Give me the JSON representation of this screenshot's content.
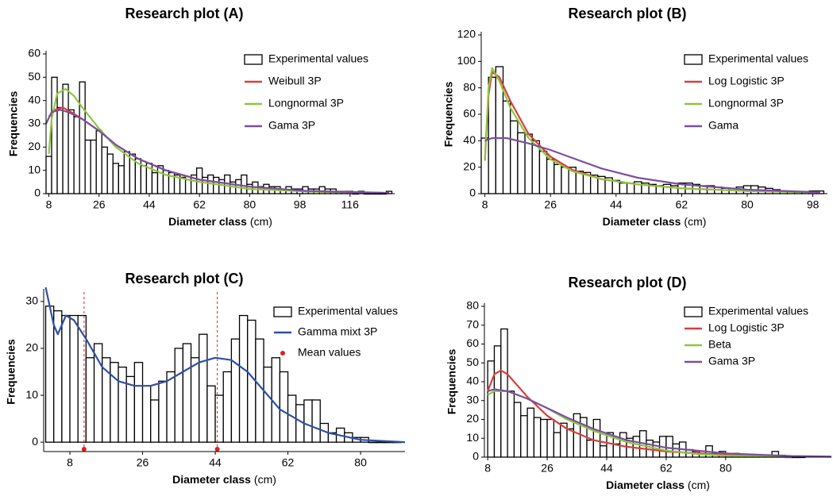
{
  "chart_data": [
    {
      "type": "histogram",
      "title": "Research plot (A)",
      "xlabel": "Diameter class",
      "xlabel_unit": "(cm)",
      "ylabel": "Frequencies",
      "bar_name": "Experimental values",
      "bar_color": "#000000",
      "bins": [
        7,
        9,
        11,
        13,
        15,
        17,
        19,
        21,
        23,
        25,
        27,
        29,
        31,
        33,
        35,
        37,
        39,
        41,
        43,
        45,
        47,
        49,
        51,
        53,
        55,
        57,
        59,
        61,
        63,
        65,
        67,
        69,
        71,
        73,
        75,
        77,
        79,
        81,
        83,
        85,
        87,
        89,
        91,
        93,
        95,
        97,
        99,
        101,
        103,
        105,
        107,
        109,
        111,
        113,
        115,
        117,
        119,
        121,
        123,
        125,
        127,
        129,
        131
      ],
      "counts": [
        16,
        50,
        37,
        47,
        36,
        33,
        48,
        23,
        23,
        27,
        20,
        17,
        13,
        12,
        18,
        17,
        15,
        12,
        13,
        9,
        12,
        10,
        9,
        8,
        7,
        6,
        8,
        11,
        7,
        8,
        7,
        6,
        8,
        5,
        6,
        8,
        4,
        5,
        3,
        4,
        3,
        3,
        2,
        3,
        2,
        2,
        3,
        2,
        2,
        3,
        2,
        2,
        1,
        1,
        1,
        0,
        1,
        0,
        0,
        0,
        0,
        1
      ],
      "curves": [
        {
          "name": "Weibull 3P",
          "color": "#d7403a",
          "x": [
            8,
            10,
            13,
            16,
            20,
            26,
            32,
            40,
            50,
            62,
            80,
            100,
            130
          ],
          "values": [
            33,
            36,
            37,
            35,
            32,
            27,
            21,
            15,
            10,
            6,
            3,
            1,
            0.2
          ]
        },
        {
          "name": "Longnormal 3P",
          "color": "#8dc63f",
          "x": [
            8,
            9,
            11,
            14,
            17,
            20,
            26,
            32,
            40,
            50,
            62,
            80,
            100,
            130
          ],
          "values": [
            17,
            32,
            43,
            45,
            42,
            37,
            28,
            20,
            13,
            8,
            5,
            2,
            1,
            0.3
          ]
        },
        {
          "name": "Gama 3P",
          "color": "#7b4fa0",
          "x": [
            7,
            9,
            12,
            15,
            20,
            26,
            32,
            40,
            50,
            62,
            80,
            100,
            130
          ],
          "values": [
            30,
            35,
            36,
            35,
            32,
            27,
            21,
            15,
            10,
            6,
            3,
            1.2,
            0.3
          ]
        }
      ],
      "xlim": [
        7,
        132
      ],
      "ylim": [
        0,
        60
      ],
      "xticks": [
        8,
        26,
        44,
        62,
        80,
        98,
        116
      ],
      "yticks": [
        0,
        10,
        20,
        30,
        40,
        50,
        60
      ],
      "legend": "upper right"
    },
    {
      "type": "histogram",
      "title": "Research plot (B)",
      "xlabel": "Diameter class",
      "xlabel_unit": "(cm)",
      "ylabel": "Frequencies",
      "bar_name": "Experimental values",
      "bar_color": "#000000",
      "bins": [
        7,
        9,
        11,
        13,
        15,
        17,
        19,
        21,
        23,
        25,
        27,
        29,
        31,
        33,
        35,
        37,
        39,
        41,
        43,
        45,
        47,
        49,
        51,
        53,
        55,
        57,
        59,
        61,
        63,
        65,
        67,
        69,
        71,
        73,
        75,
        77,
        79,
        81,
        83,
        85,
        87,
        89,
        91,
        93,
        95,
        97,
        99,
        101
      ],
      "counts": [
        42,
        88,
        96,
        70,
        55,
        46,
        45,
        40,
        32,
        26,
        22,
        20,
        20,
        17,
        16,
        14,
        13,
        12,
        10,
        8,
        8,
        9,
        8,
        7,
        6,
        7,
        6,
        8,
        8,
        7,
        6,
        6,
        5,
        4,
        4,
        5,
        6,
        6,
        5,
        4,
        3,
        2,
        2,
        1,
        1,
        2,
        2
      ],
      "curves": [
        {
          "name": "Log Logistic 3P",
          "color": "#d7403a",
          "x": [
            8,
            9,
            10,
            12,
            15,
            20,
            26,
            32,
            40,
            50,
            62,
            80,
            100
          ],
          "values": [
            25,
            75,
            92,
            88,
            70,
            45,
            28,
            18,
            11,
            7,
            4,
            2,
            1
          ]
        },
        {
          "name": "Longnormal 3P",
          "color": "#8dc63f",
          "x": [
            8,
            9,
            10,
            12,
            15,
            20,
            26,
            32,
            40,
            50,
            62,
            80,
            100
          ],
          "values": [
            25,
            80,
            95,
            85,
            65,
            42,
            26,
            17,
            11,
            7,
            4,
            2,
            1
          ]
        },
        {
          "name": "Gama",
          "color": "#7b4fa0",
          "x": [
            8,
            10,
            14,
            20,
            26,
            32,
            40,
            50,
            62,
            80,
            100
          ],
          "values": [
            40,
            42,
            42,
            38,
            33,
            27,
            19,
            12,
            7,
            3,
            1
          ]
        }
      ],
      "xlim": [
        7,
        102
      ],
      "ylim": [
        0,
        120
      ],
      "xticks": [
        8,
        26,
        44,
        62,
        80,
        98
      ],
      "yticks": [
        0,
        20,
        40,
        60,
        80,
        100,
        120
      ],
      "legend": "upper right"
    },
    {
      "type": "histogram",
      "title": "Research plot (C)",
      "xlabel": "Diameter class",
      "xlabel_unit": "(cm)",
      "ylabel": "Frequencies",
      "bar_name": "Experimental values",
      "bar_color": "#000000",
      "bins": [
        2,
        4,
        6,
        8,
        10,
        12,
        14,
        16,
        18,
        20,
        22,
        24,
        26,
        28,
        30,
        32,
        34,
        36,
        38,
        40,
        42,
        44,
        46,
        48,
        50,
        52,
        54,
        56,
        58,
        60,
        62,
        64,
        66,
        68,
        70,
        72,
        74,
        76,
        78,
        80,
        82,
        84,
        86,
        88,
        90
      ],
      "counts": [
        29,
        28,
        27,
        27,
        27,
        18,
        21,
        18,
        17,
        16,
        14,
        17,
        12,
        9,
        13,
        15,
        20,
        21,
        18,
        23,
        12,
        10,
        15,
        22,
        27,
        26,
        22,
        16,
        18,
        15,
        10,
        8,
        9,
        9,
        4,
        2,
        3,
        2,
        1,
        1,
        0,
        0,
        0,
        0
      ],
      "curves": [
        {
          "name": "Gamma mixt 3P",
          "color": "#2e4fa3",
          "x": [
            2,
            4,
            5,
            7,
            9,
            12,
            16,
            20,
            24,
            28,
            32,
            36,
            40,
            44,
            48,
            52,
            56,
            60,
            66,
            72,
            80,
            91
          ],
          "values": [
            33,
            25,
            23,
            27,
            26,
            22,
            16,
            13,
            12,
            12,
            13,
            15,
            17,
            18,
            17.5,
            15,
            11,
            7,
            4,
            2,
            0.5,
            0
          ]
        }
      ],
      "points": {
        "name": "Mean values",
        "color": "#e02020",
        "x": [
          11.5,
          44.5
        ],
        "values": [
          -1.5,
          -1.5
        ]
      },
      "xlim": [
        1.5,
        91
      ],
      "ylim": [
        -2,
        32
      ],
      "xticks": [
        8,
        26,
        44,
        62,
        80
      ],
      "yticks": [
        0,
        10,
        20,
        30
      ],
      "legend": "upper right"
    },
    {
      "type": "histogram",
      "title": "Research plot (D)",
      "xlabel": "Diameter class",
      "xlabel_unit": "(cm)",
      "ylabel": "Frequencies",
      "bar_name": "Experimental values",
      "bar_color": "#000000",
      "bins": [
        8,
        10,
        12,
        14,
        16,
        18,
        20,
        22,
        24,
        26,
        28,
        30,
        32,
        34,
        36,
        38,
        40,
        42,
        44,
        46,
        48,
        50,
        52,
        54,
        56,
        58,
        60,
        62,
        64,
        66,
        68,
        70,
        72,
        74,
        76,
        78,
        80,
        82,
        84,
        86,
        88,
        90,
        92,
        94,
        96,
        98,
        100,
        102,
        104
      ],
      "counts": [
        51,
        59,
        68,
        35,
        29,
        22,
        26,
        21,
        20,
        20,
        13,
        18,
        15,
        23,
        21,
        9,
        20,
        6,
        13,
        7,
        13,
        10,
        11,
        14,
        9,
        8,
        11,
        11,
        7,
        8,
        4,
        3,
        3,
        6,
        2,
        3,
        1,
        2,
        1,
        1,
        1,
        1,
        1,
        3,
        1,
        0,
        0,
        0
      ],
      "curves": [
        {
          "name": "Log Logistic 3P",
          "color": "#d7403a",
          "x": [
            8,
            10,
            12,
            14,
            17,
            20,
            26,
            32,
            40,
            50,
            62,
            80,
            100,
            112
          ],
          "values": [
            35,
            44,
            46,
            44,
            38,
            32,
            22,
            15,
            9,
            5.5,
            3,
            1.2,
            0.4,
            0.2
          ]
        },
        {
          "name": "Beta",
          "color": "#8dc63f",
          "x": [
            8,
            10,
            14,
            20,
            26,
            32,
            40,
            50,
            62,
            72,
            80,
            100
          ],
          "values": [
            33,
            35,
            35,
            31,
            26,
            20,
            14,
            8,
            3.5,
            1.5,
            0.8,
            0
          ]
        },
        {
          "name": "Gama 3P",
          "color": "#7b4fa0",
          "x": [
            8,
            10,
            14,
            20,
            26,
            32,
            40,
            50,
            62,
            80,
            100,
            112
          ],
          "values": [
            35,
            36,
            35,
            31,
            26,
            21,
            15,
            9,
            5,
            2,
            0.6,
            0.3
          ]
        }
      ],
      "xlim": [
        7,
        112
      ],
      "ylim": [
        0,
        80
      ],
      "xticks": [
        8,
        26,
        44,
        62,
        80
      ],
      "yticks": [
        0,
        10,
        20,
        30,
        40,
        50,
        60,
        70,
        80
      ],
      "legend": "upper right"
    }
  ]
}
